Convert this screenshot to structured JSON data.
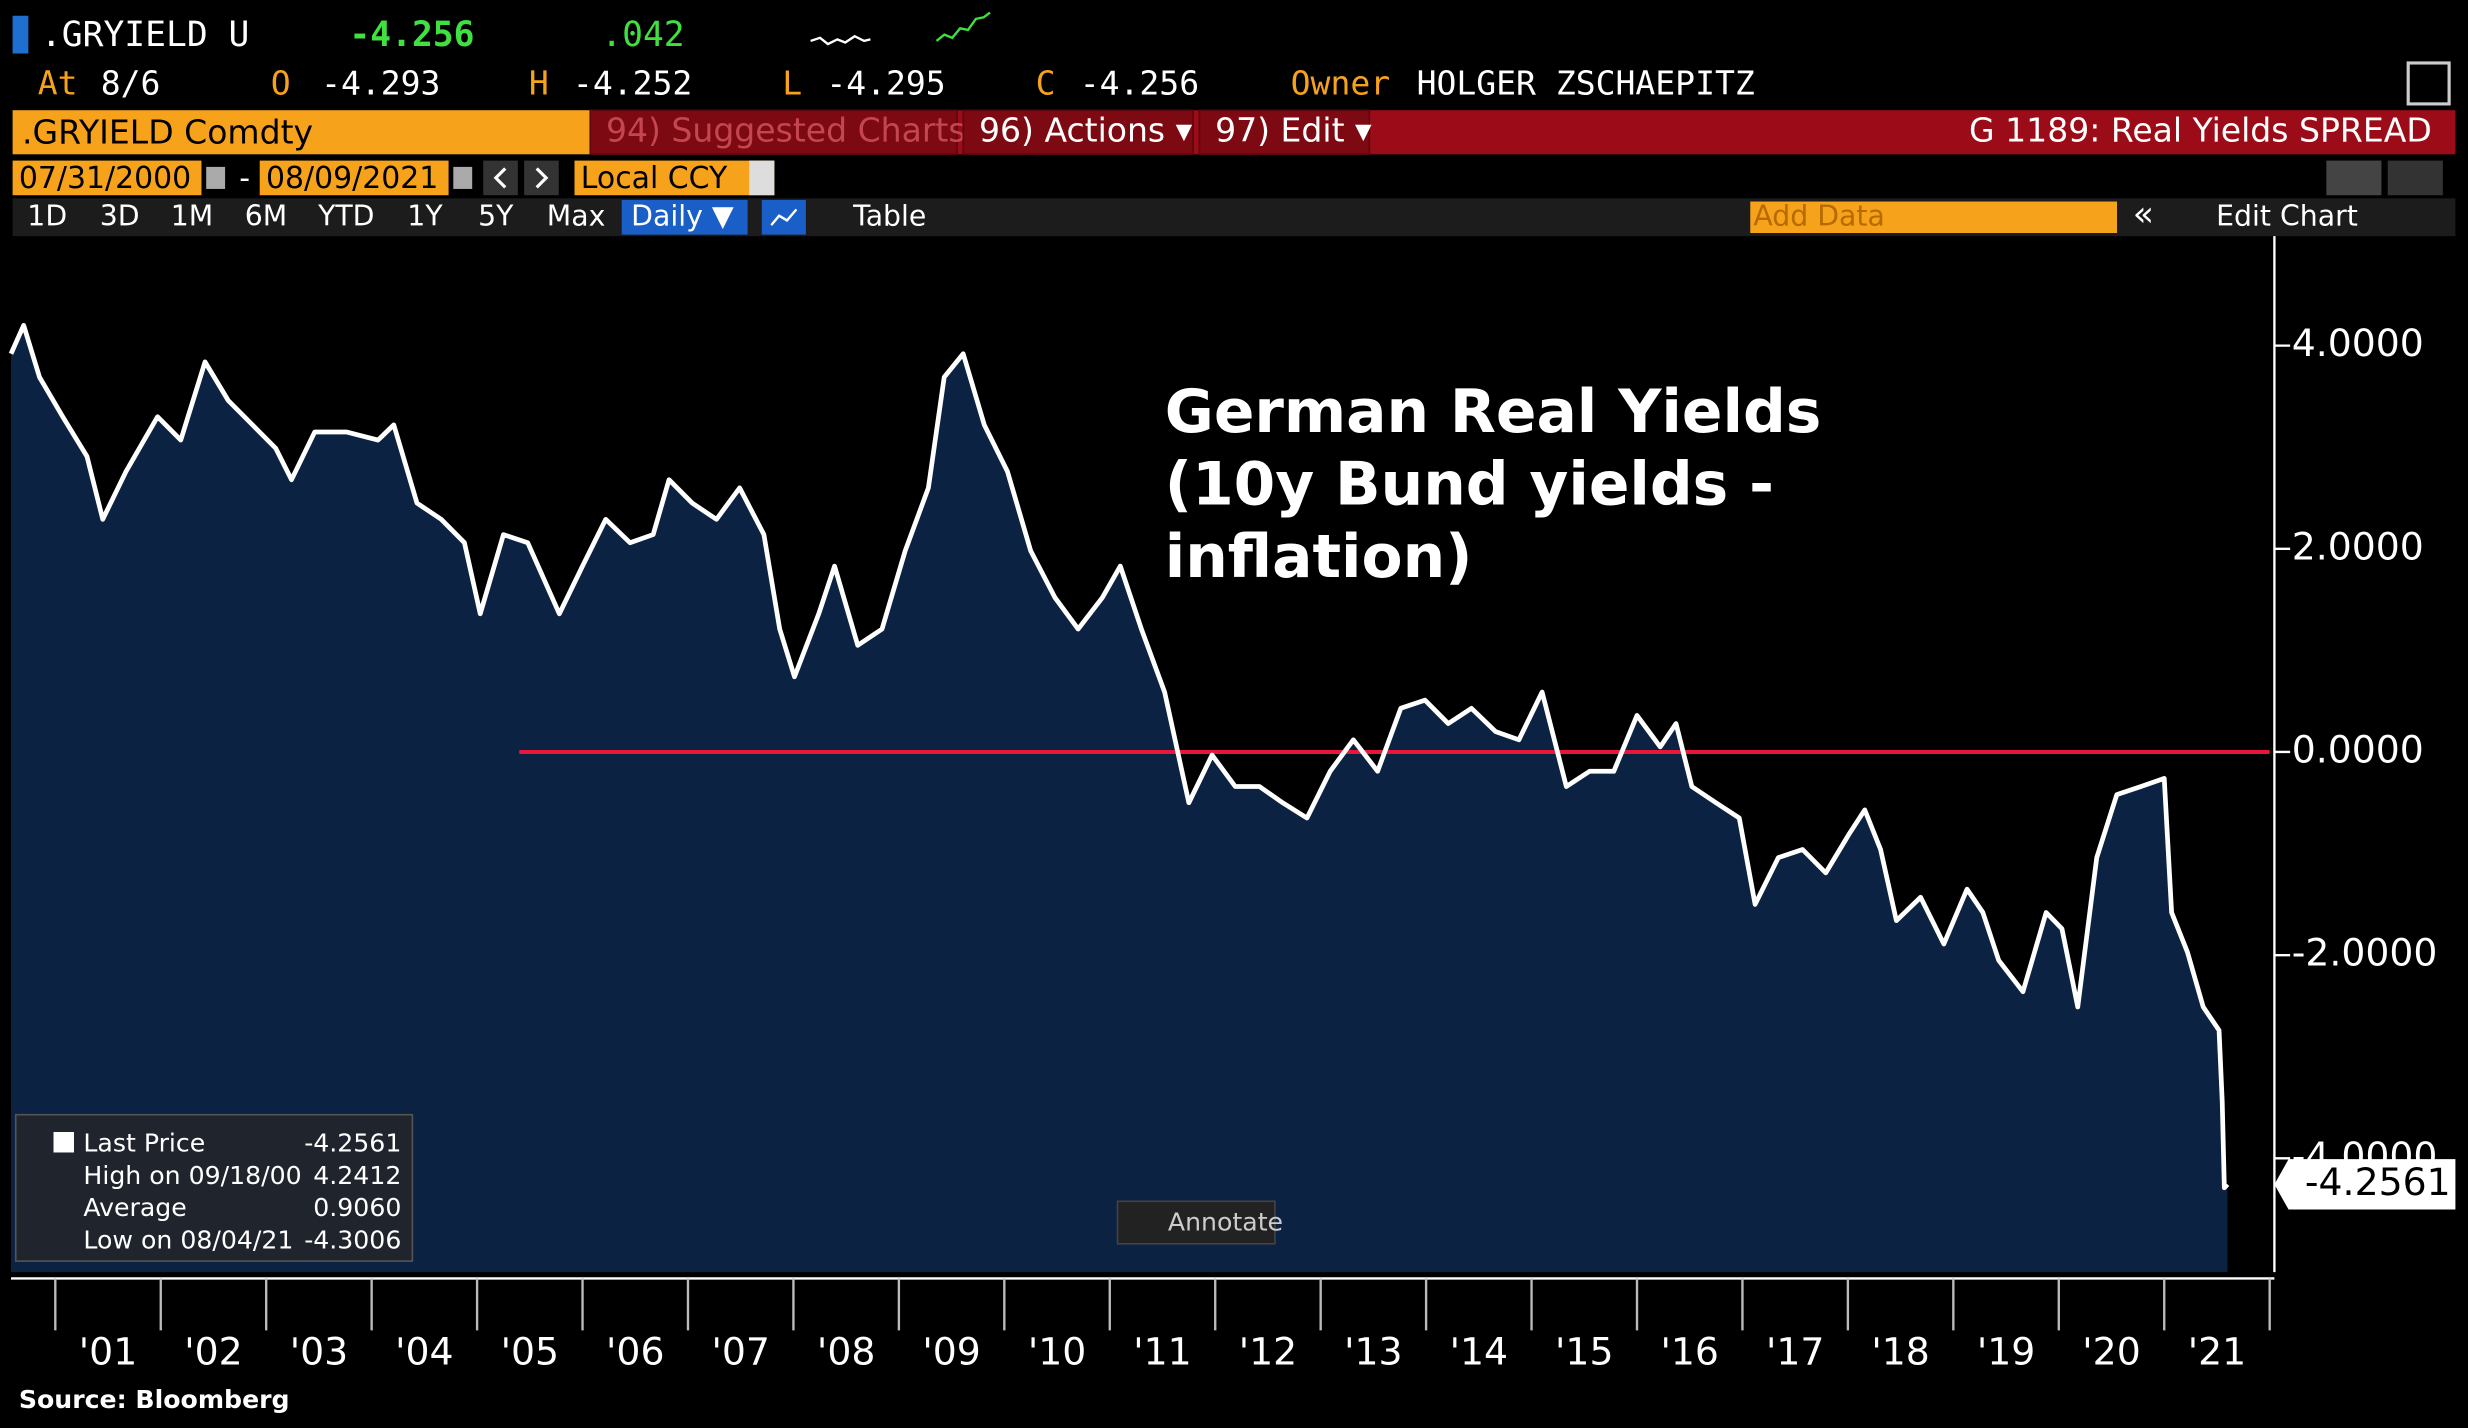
{
  "header": {
    "ticker": ".GRYIELD U",
    "last": "-4.256",
    "change": ".042",
    "quote": [
      {
        "label": "At",
        "value": "8/6"
      },
      {
        "label": "O",
        "value": "-4.293"
      },
      {
        "label": "H",
        "value": "-4.252"
      },
      {
        "label": "L",
        "value": "-4.295"
      },
      {
        "label": "C",
        "value": "-4.256"
      },
      {
        "label": "Owner",
        "value": "HOLGER ZSCHAEPITZ"
      }
    ]
  },
  "toolbar": {
    "security": ".GRYIELD Comdty",
    "menus": [
      "94) Suggested Charts",
      "96) Actions ▾",
      "97) Edit ▾"
    ],
    "chart_name": "G 1189: Real Yields SPREAD",
    "start_date": "07/31/2000",
    "date_separator": "-",
    "end_date": "08/09/2021",
    "currency": "Local CCY",
    "ranges": [
      "1D",
      "3D",
      "1M",
      "6M",
      "YTD",
      "1Y",
      "5Y",
      "Max"
    ],
    "frequency": "Daily ▼",
    "table": "Table",
    "add_data": "Add Data",
    "collapse": "«",
    "edit_chart": "Edit Chart",
    "annotate": "Annotate"
  },
  "chart_data": {
    "type": "line",
    "title_lines": [
      "German Real Yields",
      "(10y Bund yields -",
      "inflation)"
    ],
    "color": "#ffffff",
    "area_color": "#0c2242",
    "x": [
      2000.58,
      2000.7,
      2000.85,
      2001.07,
      2001.3,
      2001.45,
      2001.67,
      2001.97,
      2002.19,
      2002.42,
      2002.64,
      2002.87,
      2003.09,
      2003.24,
      2003.46,
      2003.76,
      2004.06,
      2004.21,
      2004.43,
      2004.66,
      2004.88,
      2005.03,
      2005.25,
      2005.48,
      2005.78,
      2006.0,
      2006.22,
      2006.45,
      2006.67,
      2006.82,
      2007.04,
      2007.27,
      2007.49,
      2007.72,
      2007.87,
      2008.01,
      2008.24,
      2008.39,
      2008.61,
      2008.84,
      2009.06,
      2009.28,
      2009.43,
      2009.61,
      2009.81,
      2010.03,
      2010.25,
      2010.48,
      2010.7,
      2010.93,
      2011.1,
      2011.3,
      2011.52,
      2011.75,
      2011.97,
      2012.19,
      2012.42,
      2012.64,
      2012.87,
      2013.09,
      2013.31,
      2013.54,
      2013.76,
      2013.99,
      2014.21,
      2014.43,
      2014.66,
      2014.88,
      2015.1,
      2015.33,
      2015.55,
      2015.78,
      2016.0,
      2016.22,
      2016.37,
      2016.52,
      2016.75,
      2016.97,
      2017.12,
      2017.34,
      2017.57,
      2017.79,
      2018.01,
      2018.16,
      2018.31,
      2018.46,
      2018.69,
      2018.91,
      2019.13,
      2019.28,
      2019.43,
      2019.66,
      2019.88,
      2020.03,
      2020.18,
      2020.36,
      2020.55,
      2020.78,
      2021.0,
      2021.07,
      2021.22,
      2021.37,
      2021.52,
      2021.55,
      2021.57,
      2021.6
    ],
    "values": [
      3.92,
      4.2,
      3.69,
      3.3,
      2.91,
      2.29,
      2.76,
      3.3,
      3.07,
      3.84,
      3.46,
      3.22,
      2.99,
      2.68,
      3.15,
      3.15,
      3.07,
      3.22,
      2.45,
      2.29,
      2.06,
      1.36,
      2.14,
      2.06,
      1.36,
      1.83,
      2.29,
      2.06,
      2.14,
      2.68,
      2.45,
      2.29,
      2.6,
      2.14,
      1.21,
      0.74,
      1.36,
      1.83,
      1.05,
      1.21,
      1.98,
      2.6,
      3.69,
      3.92,
      3.22,
      2.76,
      1.98,
      1.52,
      1.21,
      1.52,
      1.83,
      1.21,
      0.59,
      -0.5,
      -0.03,
      -0.34,
      -0.34,
      -0.5,
      -0.65,
      -0.19,
      0.12,
      -0.19,
      0.43,
      0.51,
      0.28,
      0.43,
      0.2,
      0.12,
      0.59,
      -0.34,
      -0.19,
      -0.19,
      0.36,
      0.05,
      0.28,
      -0.34,
      -0.5,
      -0.65,
      -1.5,
      -1.04,
      -0.96,
      -1.19,
      -0.81,
      -0.57,
      -0.96,
      -1.66,
      -1.43,
      -1.89,
      -1.35,
      -1.58,
      -2.05,
      -2.36,
      -1.58,
      -1.74,
      -2.51,
      -1.04,
      -0.42,
      -0.34,
      -0.26,
      -1.58,
      -1.97,
      -2.51,
      -2.74,
      -3.44,
      -4.29,
      -4.256
    ],
    "xlim": [
      2000.58,
      2022
    ],
    "ylim": [
      -5.12,
      5.0
    ],
    "xticks": [
      {
        "value": 2001,
        "label": "'01"
      },
      {
        "value": 2002,
        "label": "'02"
      },
      {
        "value": 2003,
        "label": "'03"
      },
      {
        "value": 2004,
        "label": "'04"
      },
      {
        "value": 2005,
        "label": "'05"
      },
      {
        "value": 2006,
        "label": "'06"
      },
      {
        "value": 2007,
        "label": "'07"
      },
      {
        "value": 2008,
        "label": "'08"
      },
      {
        "value": 2009,
        "label": "'09"
      },
      {
        "value": 2010,
        "label": "'10"
      },
      {
        "value": 2011,
        "label": "'11"
      },
      {
        "value": 2012,
        "label": "'12"
      },
      {
        "value": 2013,
        "label": "'13"
      },
      {
        "value": 2014,
        "label": "'14"
      },
      {
        "value": 2015,
        "label": "'15"
      },
      {
        "value": 2016,
        "label": "'16"
      },
      {
        "value": 2017,
        "label": "'17"
      },
      {
        "value": 2018,
        "label": "'18"
      },
      {
        "value": 2019,
        "label": "'19"
      },
      {
        "value": 2020,
        "label": "'20"
      },
      {
        "value": 2021,
        "label": "'21"
      }
    ],
    "yticks": [
      {
        "value": 4,
        "label": "4.0000"
      },
      {
        "value": 2,
        "label": "2.0000"
      },
      {
        "value": 0,
        "label": "0.0000"
      },
      {
        "value": -2,
        "label": "-2.0000"
      },
      {
        "value": -4,
        "label": "-4.0000"
      }
    ],
    "hline": {
      "value": 0,
      "from": 2005.4,
      "color": "#e8173a"
    },
    "last_tag": {
      "value": -4.2561,
      "label": "-4.2561"
    },
    "legend": [
      {
        "label": "Last Price",
        "value": "-4.2561"
      },
      {
        "label": "High on 09/18/00",
        "value": "4.2412"
      },
      {
        "label": "Average",
        "value": "0.9060"
      },
      {
        "label": "Low on 08/04/21",
        "value": "-4.3006"
      }
    ],
    "grid": false
  },
  "source": "Source: Bloomberg"
}
